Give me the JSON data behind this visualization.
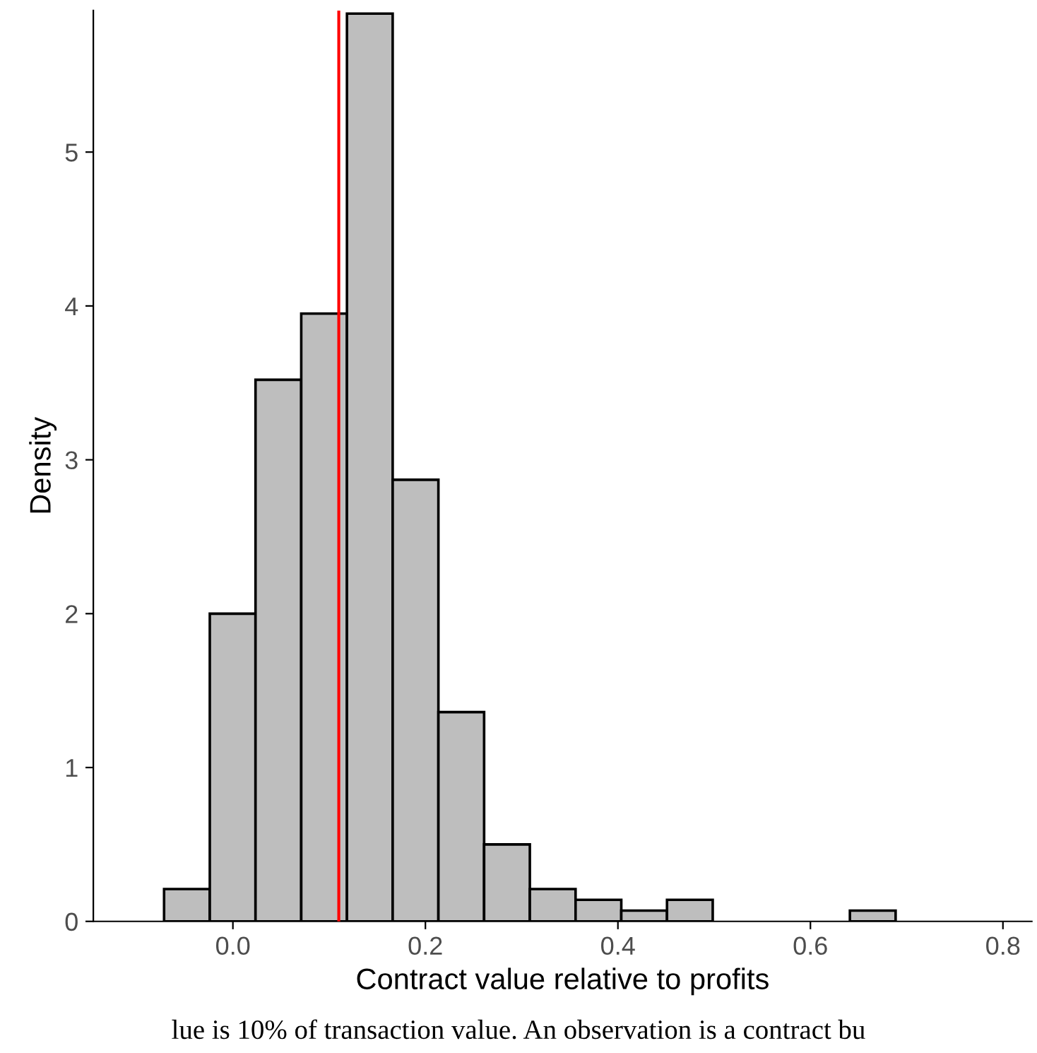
{
  "chart_data": {
    "type": "histogram",
    "xlabel": "Contract value relative to profits",
    "ylabel": "Density",
    "bins": [
      -0.0715,
      -0.024,
      0.0235,
      0.071,
      0.1185,
      0.166,
      0.2135,
      0.261,
      0.3085,
      0.356,
      0.4035,
      0.451,
      0.4985,
      0.546,
      0.5935,
      0.641,
      0.6885,
      0.736,
      0.7835
    ],
    "values": [
      0.21,
      2.0,
      3.52,
      3.95,
      5.9,
      2.87,
      1.36,
      0.5,
      0.21,
      0.14,
      0.07,
      0.14,
      0,
      0,
      0,
      0.07,
      0,
      0
    ],
    "color": "#bebebe",
    "xlim": [
      -0.145,
      0.83
    ],
    "xticks": [
      {
        "value": 0,
        "label": "0.0"
      },
      0.2,
      0.4,
      0.6,
      0.8
    ],
    "ylim": [
      0,
      5.92
    ],
    "yticks": [
      0,
      1,
      2,
      3,
      4,
      5
    ],
    "grid": false,
    "ref_lines": [
      {
        "axis": "x",
        "value": 0.11,
        "color": "#ff0000"
      }
    ],
    "annotations": [
      "lue is 10% of transaction value. An observation is a contract bu"
    ]
  }
}
